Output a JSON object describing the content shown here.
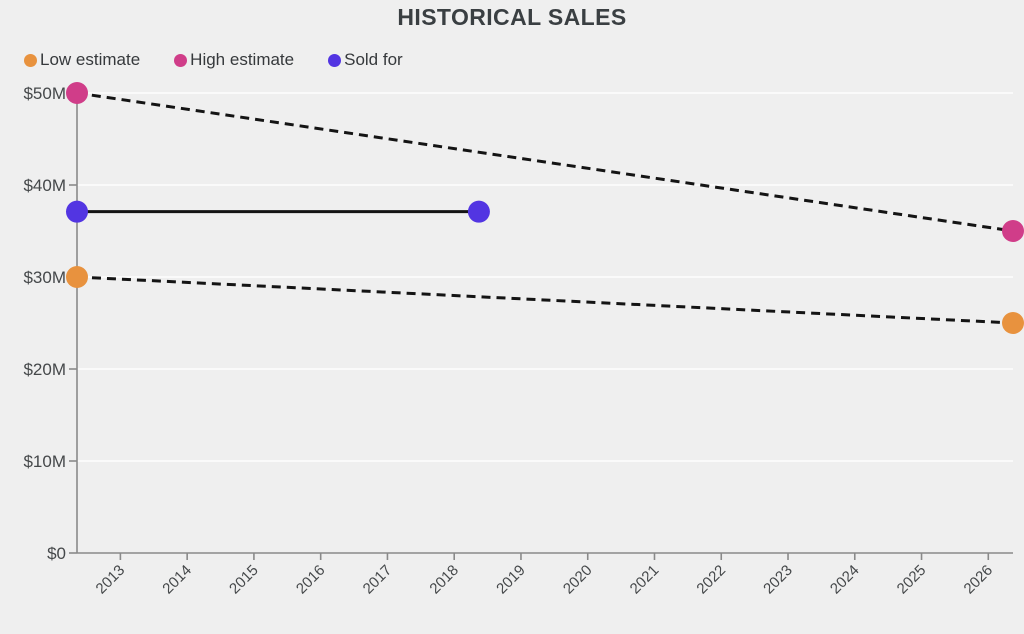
{
  "page": {
    "background_color": "#efefef"
  },
  "chart_data": {
    "type": "scatter",
    "title": "HISTORICAL SALES",
    "legend_position": "top-left",
    "grid": "horizontal",
    "legend": [
      {
        "label": "Low estimate",
        "color": "#e8923e"
      },
      {
        "label": "High estimate",
        "color": "#d03d89"
      },
      {
        "label": "Sold for",
        "color": "#5235e2"
      }
    ],
    "x_axis": {
      "range": [
        2012.35,
        2026.37
      ],
      "ticks": [
        2013,
        2014,
        2015,
        2016,
        2017,
        2018,
        2019,
        2020,
        2021,
        2022,
        2023,
        2024,
        2025,
        2026
      ],
      "tick_rotation_deg": -45
    },
    "y_axis": {
      "range": [
        0,
        50
      ],
      "ticks": [
        0,
        10,
        20,
        30,
        40,
        50
      ],
      "tick_labels": [
        "$0",
        "$10M",
        "$20M",
        "$30M",
        "$40M",
        "$50M"
      ]
    },
    "series": [
      {
        "name": "Low estimate",
        "marker_color": "#e8923e",
        "line_style": "dashed",
        "line_color": "#141414",
        "points": [
          {
            "x": 2012.35,
            "y": 30
          },
          {
            "x": 2026.37,
            "y": 25
          }
        ]
      },
      {
        "name": "High estimate",
        "marker_color": "#d03d89",
        "line_style": "dashed",
        "line_color": "#141414",
        "points": [
          {
            "x": 2012.35,
            "y": 50
          },
          {
            "x": 2026.37,
            "y": 35
          }
        ]
      },
      {
        "name": "Sold for",
        "marker_color": "#5235e2",
        "line_style": "solid",
        "line_color": "#141414",
        "points": [
          {
            "x": 2012.35,
            "y": 37.1
          },
          {
            "x": 2018.37,
            "y": 37.1
          }
        ]
      }
    ]
  },
  "colors": {
    "title_text": "#3a3f42",
    "legend_text": "#36393c",
    "axis_line": "#8a8a8a",
    "tick_label": "#45484a",
    "gridline": "#fafafa",
    "connector_line": "#141414",
    "background": "#efefef"
  }
}
